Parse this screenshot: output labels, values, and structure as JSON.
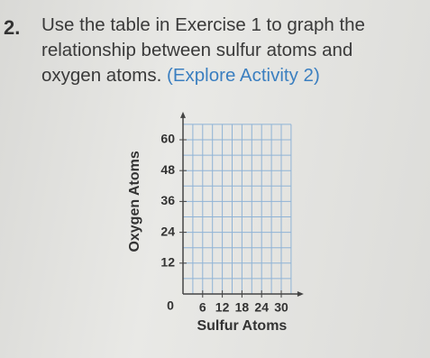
{
  "problem": {
    "number": "2.",
    "text_lines": [
      "Use the table in Exercise 1 to graph the",
      "relationship between sulfur atoms and",
      "oxygen atoms."
    ],
    "reference": "(Explore Activity 2)"
  },
  "graph": {
    "x_label": "Sulfur Atoms",
    "y_label": "Oxygen Atoms",
    "origin": "0",
    "xticks": [
      6,
      12,
      18,
      24,
      30
    ],
    "yticks": [
      12,
      24,
      36,
      48,
      60
    ]
  }
}
